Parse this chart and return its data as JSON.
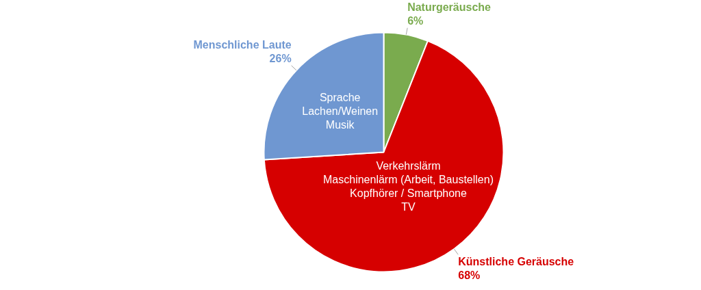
{
  "chart_data": {
    "type": "pie",
    "categories": [
      "Naturgeräusche",
      "Künstliche Geräusche",
      "Menschliche Laute"
    ],
    "values": [
      6,
      68,
      26
    ],
    "value_labels": [
      "6%",
      "68%",
      "26%"
    ],
    "colors": [
      "#7aab4e",
      "#d60000",
      "#6f97d1"
    ],
    "annotations": [
      {
        "text": "Sprache\nLachen/Weinen\nMusik",
        "x": "Menschliche Laute"
      },
      {
        "text": "Verkehrslärm\nMaschinenlärm (Arbeit, Baustellen)\nKopfhörer / Smartphone\nTV",
        "x": "Künstliche Geräusche"
      }
    ]
  }
}
